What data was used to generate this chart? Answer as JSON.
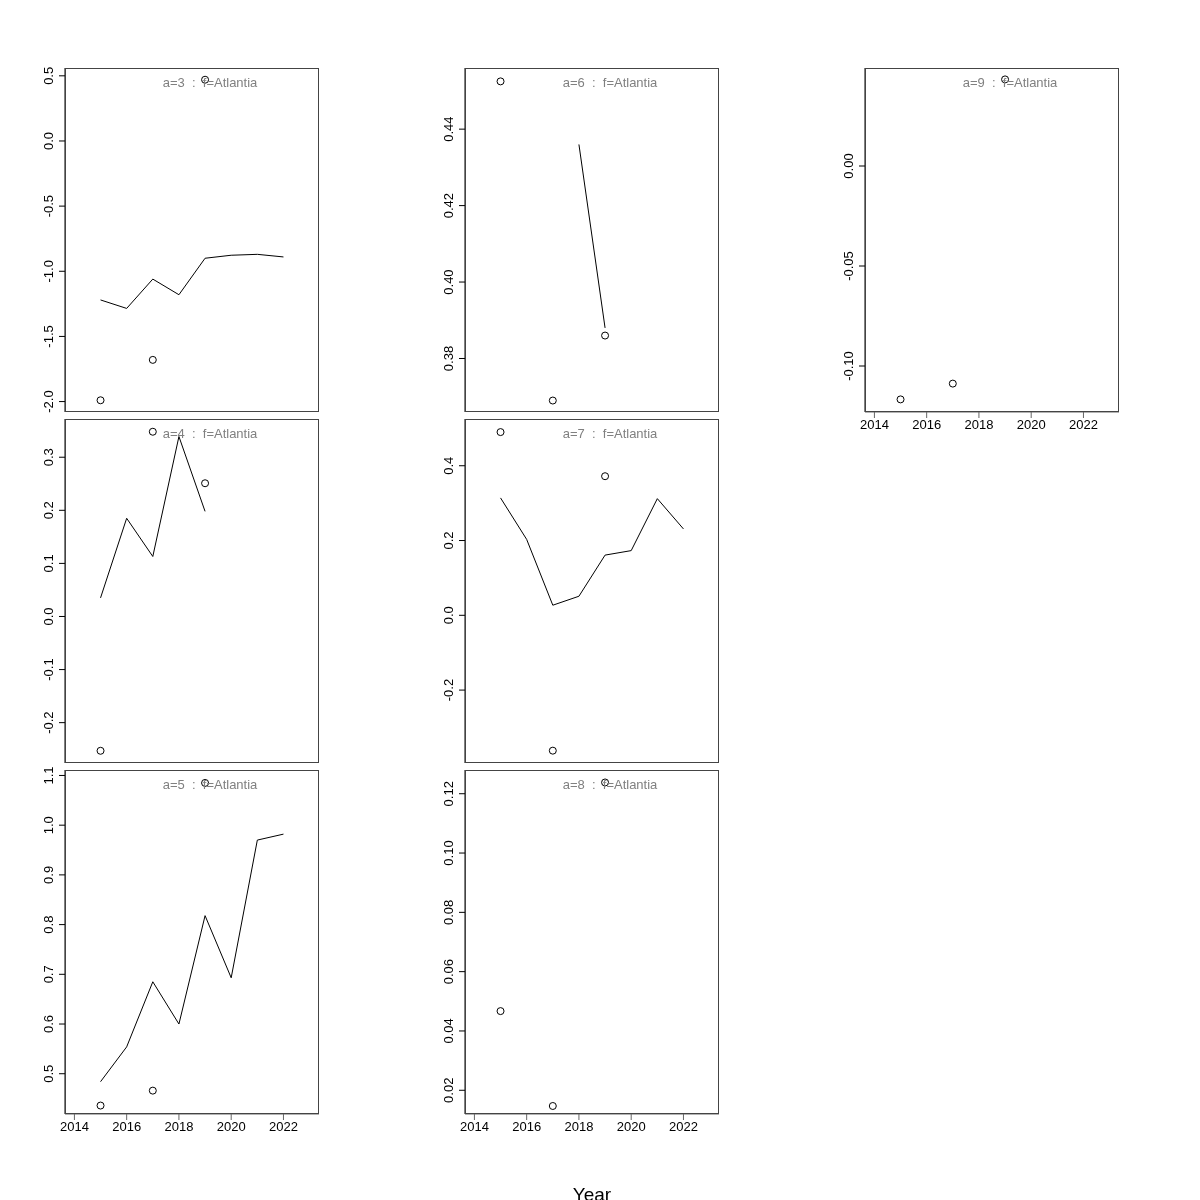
{
  "chart_data": [
    {
      "type": "line",
      "title": "a=3  :  f=Atlantia",
      "xlim": [
        2013.64,
        2023.36
      ],
      "xticks": [
        2014,
        2016,
        2018,
        2020,
        2022
      ],
      "ylim": [
        -2.08,
        0.56
      ],
      "yticks": [
        {
          "value": -2,
          "label": "-2.0"
        },
        -1.5,
        {
          "value": -1,
          "label": "-1.0"
        },
        -0.5,
        {
          "value": 0,
          "label": "0.0"
        },
        0.5
      ],
      "tick_labels": "y",
      "series": [
        {
          "type": "line",
          "color": "#000000",
          "marker": "none",
          "x": [
            2015,
            2016,
            2017,
            2018,
            2019,
            2020,
            2021,
            2022
          ],
          "values": [
            -1.22,
            -1.285,
            -1.06,
            -1.18,
            -0.9,
            -0.877,
            -0.87,
            -0.89
          ]
        },
        {
          "type": "scatter",
          "color": "#000000",
          "marker": "circle",
          "x": [
            2015,
            2017,
            2019
          ],
          "values": [
            -1.99,
            -1.68,
            0.47
          ]
        }
      ]
    },
    {
      "type": "line",
      "title": "a=4  :  f=Atlantia",
      "xlim": [
        2013.64,
        2023.36
      ],
      "xticks": [
        2014,
        2016,
        2018,
        2020,
        2022
      ],
      "ylim": [
        -0.276,
        0.372
      ],
      "yticks": [
        -0.2,
        -0.1,
        {
          "value": 0,
          "label": "0.0"
        },
        0.1,
        0.2,
        0.3
      ],
      "tick_labels": "y",
      "series": [
        {
          "type": "line",
          "color": "#000000",
          "marker": "none",
          "x": [
            2015,
            2016,
            2017,
            2018,
            2019
          ],
          "values": [
            0.035,
            0.185,
            0.113,
            0.339,
            0.198
          ]
        },
        {
          "type": "scatter",
          "color": "#000000",
          "marker": "circle",
          "x": [
            2015,
            2017,
            2019
          ],
          "values": [
            -0.253,
            0.348,
            0.251
          ]
        }
      ]
    },
    {
      "type": "line",
      "title": "a=5  :  f=Atlantia",
      "xlim": [
        2013.64,
        2023.36
      ],
      "xticks": [
        2014,
        2016,
        2018,
        2020,
        2022
      ],
      "ylim": [
        0.419,
        1.111
      ],
      "yticks": [
        0.5,
        0.6,
        0.7,
        0.8,
        0.9,
        {
          "value": 1,
          "label": "1.0"
        },
        1.1
      ],
      "series": [
        {
          "type": "line",
          "color": "#000000",
          "marker": "none",
          "x": [
            2015,
            2016,
            2017,
            2018,
            2019,
            2020,
            2021,
            2022
          ],
          "values": [
            0.484,
            0.554,
            0.685,
            0.6,
            0.818,
            0.693,
            0.97,
            0.982
          ]
        },
        {
          "type": "scatter",
          "color": "#000000",
          "marker": "circle",
          "x": [
            2015,
            2017,
            2019
          ],
          "values": [
            0.436,
            0.466,
            1.085
          ]
        }
      ]
    },
    {
      "type": "line",
      "title": "a=6  :  f=Atlantia",
      "xlim": [
        2013.64,
        2023.36
      ],
      "xticks": [
        2014,
        2016,
        2018,
        2020,
        2022
      ],
      "ylim": [
        0.366,
        0.456
      ],
      "yticks": [
        0.38,
        {
          "value": 0.4,
          "label": "0.40"
        },
        0.42,
        0.44
      ],
      "tick_labels": "y",
      "series": [
        {
          "type": "line",
          "color": "#000000",
          "marker": "none",
          "x": [
            2018,
            2019
          ],
          "values": [
            0.436,
            0.388
          ]
        },
        {
          "type": "scatter",
          "color": "#000000",
          "marker": "circle",
          "x": [
            2015,
            2017,
            2019
          ],
          "values": [
            0.4525,
            0.369,
            0.386
          ]
        }
      ]
    },
    {
      "type": "line",
      "title": "a=7  :  f=Atlantia",
      "xlim": [
        2013.64,
        2023.36
      ],
      "xticks": [
        2014,
        2016,
        2018,
        2020,
        2022
      ],
      "ylim": [
        -0.395,
        0.525
      ],
      "yticks": [
        -0.2,
        {
          "value": 0,
          "label": "0.0"
        },
        0.2,
        0.4
      ],
      "tick_labels": "y",
      "series": [
        {
          "type": "line",
          "color": "#000000",
          "marker": "none",
          "x": [
            2015,
            2016,
            2017,
            2018,
            2019,
            2020,
            2021,
            2022
          ],
          "values": [
            0.314,
            0.203,
            0.027,
            0.051,
            0.161,
            0.173,
            0.312,
            0.231
          ]
        },
        {
          "type": "scatter",
          "color": "#000000",
          "marker": "circle",
          "x": [
            2015,
            2017,
            2019
          ],
          "values": [
            0.49,
            -0.362,
            0.372
          ]
        }
      ]
    },
    {
      "type": "line",
      "title": "a=8  :  f=Atlantia",
      "xlabel": "Year",
      "xlim": [
        2013.64,
        2023.36
      ],
      "xticks": [
        2014,
        2016,
        2018,
        2020,
        2022
      ],
      "ylim": [
        0.012,
        0.128
      ],
      "yticks": [
        0.02,
        0.04,
        0.06,
        0.08,
        {
          "value": 0.1,
          "label": "0.10"
        },
        0.12
      ],
      "series": [
        {
          "type": "scatter",
          "color": "#000000",
          "marker": "circle",
          "x": [
            2015,
            2017,
            2019
          ],
          "values": [
            0.0467,
            0.0147,
            0.1238
          ]
        }
      ]
    },
    {
      "type": "line",
      "title": "a=9  :  f=Atlantia",
      "xlim": [
        2013.64,
        2023.36
      ],
      "xticks": [
        2014,
        2016,
        2018,
        2020,
        2022
      ],
      "ylim": [
        -0.123,
        0.049
      ],
      "yticks": [
        {
          "value": -0.1,
          "label": "-0.10"
        },
        -0.05,
        {
          "value": 0,
          "label": "0.00"
        }
      ],
      "series": [
        {
          "type": "scatter",
          "color": "#000000",
          "marker": "circle",
          "x": [
            2015,
            2017,
            2019
          ],
          "values": [
            -0.1167,
            -0.1088,
            0.0433
          ]
        }
      ]
    }
  ]
}
